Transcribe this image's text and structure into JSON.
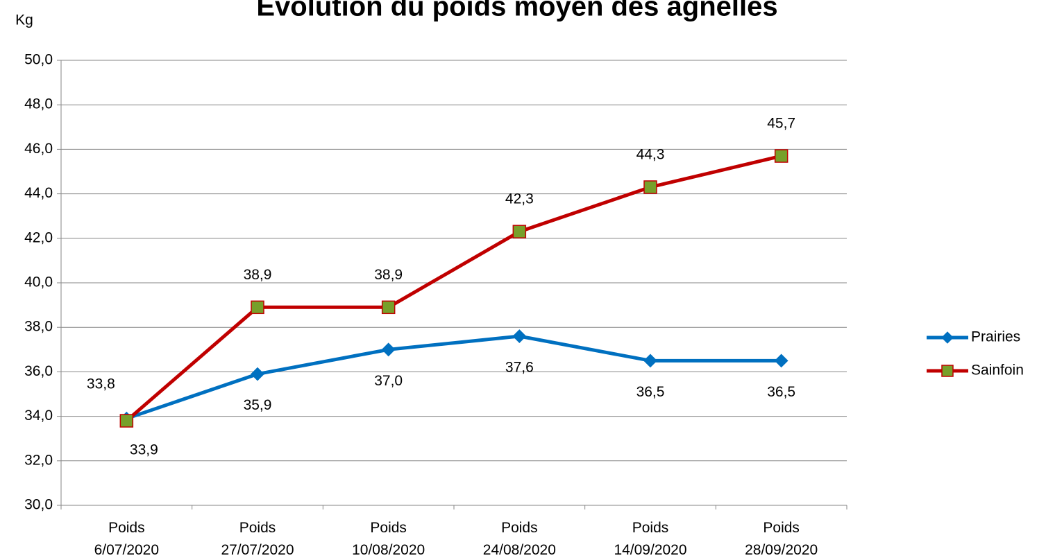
{
  "chart_data": {
    "type": "line",
    "title": "Evolution du poids moyen des agnelles",
    "y_label": "Kg",
    "categories": [
      "Poids\n6/07/2020",
      "Poids\n27/07/2020",
      "Poids\n10/08/2020",
      "Poids\n24/08/2020",
      "Poids\n14/09/2020",
      "Poids\n28/09/2020"
    ],
    "series": [
      {
        "name": "Prairies",
        "color": "#0070c0",
        "marker": "diamond",
        "marker_color": "#0070c0",
        "values": [
          33.9,
          35.9,
          37.0,
          37.6,
          36.5,
          36.5
        ],
        "value_labels": [
          "33,9",
          "35,9",
          "37,0",
          "37,6",
          "36,5",
          "36,5"
        ]
      },
      {
        "name": "Sainfoin",
        "color": "#c00000",
        "marker": "square",
        "marker_color": "#77a02a",
        "values": [
          33.8,
          38.9,
          38.9,
          42.3,
          44.3,
          45.7
        ],
        "value_labels": [
          "33,8",
          "38,9",
          "38,9",
          "42,3",
          "44,3",
          "45,7"
        ]
      }
    ],
    "ylim": [
      30,
      50
    ],
    "yticks": [
      {
        "value": 30,
        "label": "30,0"
      },
      {
        "value": 32,
        "label": "32,0"
      },
      {
        "value": 34,
        "label": "34,0"
      },
      {
        "value": 36,
        "label": "36,0"
      },
      {
        "value": 38,
        "label": "38,0"
      },
      {
        "value": 40,
        "label": "40,0"
      },
      {
        "value": 42,
        "label": "42,0"
      },
      {
        "value": 44,
        "label": "44,0"
      },
      {
        "value": 46,
        "label": "46,0"
      },
      {
        "value": 48,
        "label": "48,0"
      },
      {
        "value": 50,
        "label": "50,0"
      }
    ],
    "grid": true,
    "legend": "right"
  }
}
